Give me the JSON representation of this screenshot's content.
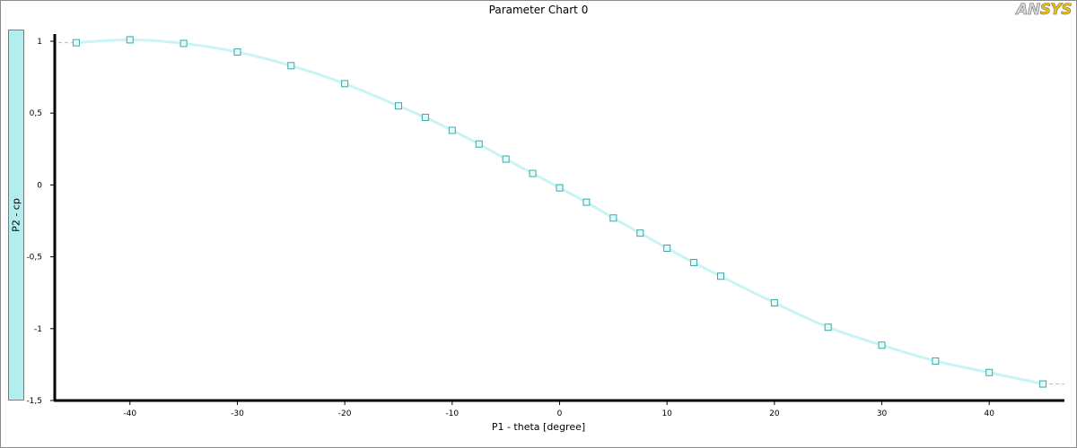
{
  "window": {
    "logo_text_an": "AN",
    "logo_text_sys": "SYS"
  },
  "chart_data": {
    "type": "line",
    "title": "Parameter Chart 0",
    "xlabel": "P1 - theta  [degree]",
    "ylabel": "P2 - cp",
    "xlim": [
      -47,
      47
    ],
    "ylim": [
      -1.5,
      1.1
    ],
    "xticks": [
      -40,
      -30,
      -20,
      -10,
      0,
      10,
      20,
      30,
      40
    ],
    "xtick_labels": [
      "-40",
      "-30",
      "-20",
      "-10",
      "0",
      "10",
      "20",
      "30",
      "40"
    ],
    "yticks": [
      1,
      0.5,
      0,
      -0.5,
      -1,
      -1.5
    ],
    "ytick_labels": [
      "1",
      "0,5",
      "0",
      "-0,5",
      "-1",
      "-1,5"
    ],
    "grid": false,
    "line_color": "#c8f4f4",
    "marker_color": "#3aa8a8",
    "series": [
      {
        "x": [
          -45,
          -40,
          -35,
          -30,
          -25,
          -20,
          -15,
          -12.5,
          -10,
          -7.5,
          -5,
          -2.5,
          0,
          2.5,
          5,
          7.5,
          10,
          12.5,
          15,
          20,
          25,
          30,
          35,
          40,
          45
        ],
        "y": [
          0.99,
          1.01,
          0.985,
          0.925,
          0.83,
          0.705,
          0.55,
          0.47,
          0.38,
          0.285,
          0.18,
          0.08,
          -0.02,
          -0.12,
          -0.23,
          -0.335,
          -0.44,
          -0.54,
          -0.635,
          -0.82,
          -0.99,
          -1.115,
          -1.225,
          -1.305,
          -1.385
        ]
      }
    ]
  }
}
